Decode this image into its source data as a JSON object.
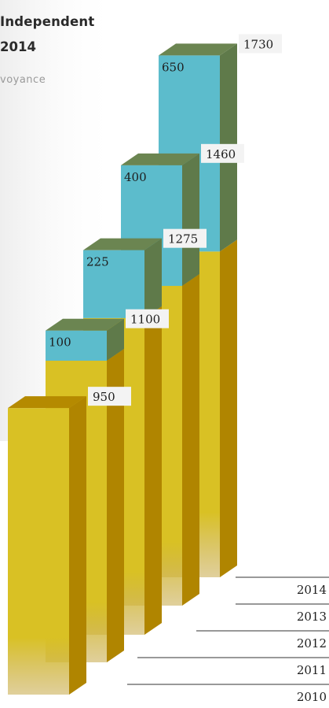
{
  "title_line1": "Independent",
  "title_line2": "2014",
  "subtitle": "voyance",
  "chart_data": {
    "type": "bar",
    "stacked": true,
    "categories": [
      "2010",
      "2011",
      "2012",
      "2013",
      "2014"
    ],
    "series": [
      {
        "values": [
          950,
          1000,
          1050,
          1060,
          1080
        ]
      },
      {
        "values": [
          0,
          100,
          225,
          400,
          650
        ]
      }
    ],
    "totals": [
      950,
      1100,
      1275,
      1460,
      1730
    ],
    "colors": {
      "base_front": "#d9c124",
      "base_side": "#b08500",
      "base_top": "#b58a00",
      "top_front": "#5cbccc",
      "top_side": "#5f7a4a",
      "top_top": "#6b8551",
      "line": "#333333",
      "label_bg": "#f3f3f3"
    }
  }
}
